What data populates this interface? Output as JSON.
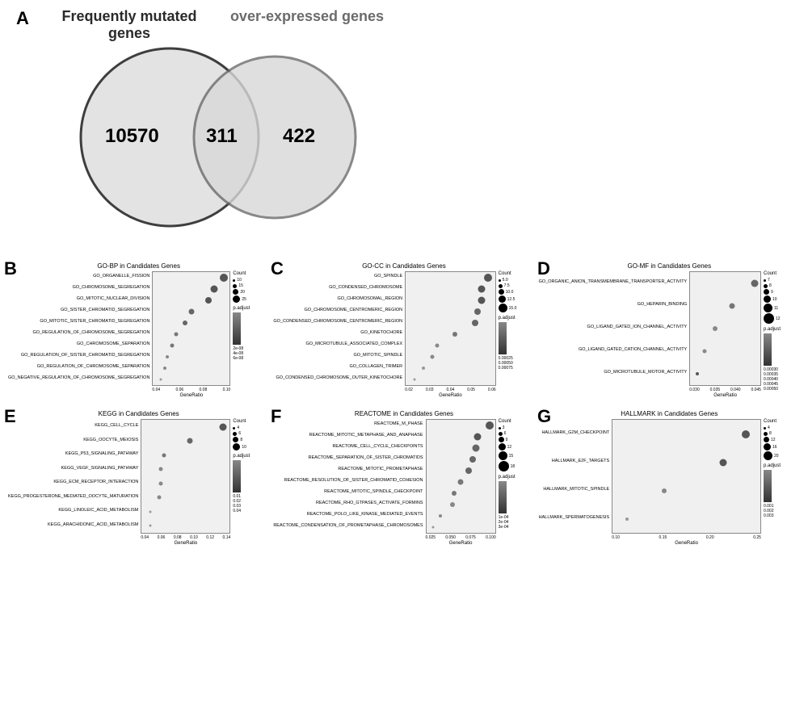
{
  "venn": {
    "title_left": "Frequently mutated genes",
    "title_right": "over-expressed genes",
    "left_value": "10570",
    "center_value": "311",
    "right_value": "422",
    "left_color": "#2a2a2a",
    "right_color": "#6b6b6b",
    "left_fill": "#e0e0e0",
    "right_fill": "#d8d8d8",
    "overlap_fill": "#b8b8b8"
  },
  "panels": {
    "A": "A",
    "B": "B",
    "C": "C",
    "D": "D",
    "E": "E",
    "F": "F",
    "G": "G"
  },
  "charts": {
    "B": {
      "title": "GO-BP in Candidates Genes",
      "xlabel": "GeneRatio",
      "xticks": [
        "0.04",
        "0.06",
        "0.08",
        "0.10"
      ],
      "terms": [
        {
          "label": "GO_ORGANELLE_FISSION",
          "x": 0.92,
          "size": 10,
          "color": "#555"
        },
        {
          "label": "GO_CHROMOSOME_SEGREGATION",
          "x": 0.8,
          "size": 9,
          "color": "#555"
        },
        {
          "label": "GO_MITOTIC_NUCLEAR_DIVISION",
          "x": 0.72,
          "size": 8,
          "color": "#555"
        },
        {
          "label": "GO_SISTER_CHROMATID_SEGREGATION",
          "x": 0.5,
          "size": 7,
          "color": "#666"
        },
        {
          "label": "GO_MITOTIC_SISTER_CHROMATID_SEGREGATION",
          "x": 0.42,
          "size": 6,
          "color": "#666"
        },
        {
          "label": "GO_REGULATION_OF_CHROMOSOME_SEGREGATION",
          "x": 0.3,
          "size": 5,
          "color": "#777"
        },
        {
          "label": "GO_CHROMOSOME_SEPARATION",
          "x": 0.25,
          "size": 5,
          "color": "#777"
        },
        {
          "label": "GO_REGULATION_OF_SISTER_CHROMATID_SEGREGATION",
          "x": 0.18,
          "size": 4,
          "color": "#888"
        },
        {
          "label": "GO_REGULATION_OF_CHROMOSOME_SEPARATION",
          "x": 0.15,
          "size": 4,
          "color": "#888"
        },
        {
          "label": "GO_NEGATIVE_REGULATION_OF_CHROMOSOME_SEGREGATION",
          "x": 0.1,
          "size": 3,
          "color": "#999"
        }
      ],
      "count_legend": [
        "10",
        "15",
        "20",
        "25"
      ],
      "padj_legend": [
        "2e-08",
        "4e-08",
        "6e-08"
      ]
    },
    "C": {
      "title": "GO-CC in Candidates Genes",
      "xlabel": "GeneRatio",
      "xticks": [
        "0.02",
        "0.03",
        "0.04",
        "0.05",
        "0.06"
      ],
      "terms": [
        {
          "label": "GO_SPINDLE",
          "x": 0.92,
          "size": 10,
          "color": "#555"
        },
        {
          "label": "GO_CONDENSED_CHROMOSOME",
          "x": 0.85,
          "size": 9,
          "color": "#555"
        },
        {
          "label": "GO_CHROMOSOMAL_REGION",
          "x": 0.85,
          "size": 9,
          "color": "#555"
        },
        {
          "label": "GO_CHROMOSOME_CENTROMERIC_REGION",
          "x": 0.8,
          "size": 8,
          "color": "#666"
        },
        {
          "label": "GO_CONDENSED_CHROMOSOME_CENTROMERIC_REGION",
          "x": 0.78,
          "size": 8,
          "color": "#666"
        },
        {
          "label": "GO_KINETOCHORE",
          "x": 0.55,
          "size": 6,
          "color": "#777"
        },
        {
          "label": "GO_MICROTUBULE_ASSOCIATED_COMPLEX",
          "x": 0.35,
          "size": 5,
          "color": "#888"
        },
        {
          "label": "GO_MITOTIC_SPINDLE",
          "x": 0.3,
          "size": 5,
          "color": "#888"
        },
        {
          "label": "GO_COLLAGEN_TRIMER",
          "x": 0.2,
          "size": 4,
          "color": "#999"
        },
        {
          "label": "GO_CONDENSED_CHROMOSOME_OUTER_KINETOCHORE",
          "x": 0.1,
          "size": 3,
          "color": "#999"
        }
      ],
      "count_legend": [
        "5.0",
        "7.5",
        "10.0",
        "12.5",
        "15.0"
      ],
      "padj_legend": [
        "0.00025",
        "0.00050",
        "0.00075"
      ]
    },
    "D": {
      "title": "GO-MF in Candidates Genes",
      "xlabel": "GeneRatio",
      "xticks": [
        "0.030",
        "0.035",
        "0.040",
        "0.045"
      ],
      "terms": [
        {
          "label": "GO_ORGANIC_ANION_TRANSMEMBRANE_TRANSPORTER_ACTIVITY",
          "x": 0.92,
          "size": 9,
          "color": "#666"
        },
        {
          "label": "GO_HEPARIN_BINDING",
          "x": 0.6,
          "size": 7,
          "color": "#777"
        },
        {
          "label": "GO_LIGAND_GATED_ION_CHANNEL_ACTIVITY",
          "x": 0.35,
          "size": 6,
          "color": "#888"
        },
        {
          "label": "GO_LIGAND_GATED_CATION_CHANNEL_ACTIVITY",
          "x": 0.2,
          "size": 5,
          "color": "#888"
        },
        {
          "label": "GO_MICROTUBULE_MOTOR_ACTIVITY",
          "x": 0.1,
          "size": 4,
          "color": "#555"
        }
      ],
      "count_legend": [
        "7",
        "8",
        "9",
        "10",
        "11",
        "12"
      ],
      "padj_legend": [
        "0.00030",
        "0.00035",
        "0.00040",
        "0.00045",
        "0.00050"
      ]
    },
    "E": {
      "title": "KEGG in Candidates Genes",
      "xlabel": "GeneRatio",
      "xticks": [
        "0.04",
        "0.06",
        "0.08",
        "0.10",
        "0.12",
        "0.14"
      ],
      "terms": [
        {
          "label": "KEGG_CELL_CYCLE",
          "x": 0.92,
          "size": 9,
          "color": "#555"
        },
        {
          "label": "KEGG_OOCYTE_MEIOSIS",
          "x": 0.55,
          "size": 7,
          "color": "#666"
        },
        {
          "label": "KEGG_P53_SIGNALING_PATHWAY",
          "x": 0.25,
          "size": 5,
          "color": "#777"
        },
        {
          "label": "KEGG_VEGF_SIGNALING_PATHWAY",
          "x": 0.22,
          "size": 5,
          "color": "#888"
        },
        {
          "label": "KEGG_ECM_RECEPTOR_INTERACTION",
          "x": 0.22,
          "size": 5,
          "color": "#888"
        },
        {
          "label": "KEGG_PROGESTERONE_MEDIATED_OOCYTE_MATURATION",
          "x": 0.2,
          "size": 5,
          "color": "#888"
        },
        {
          "label": "KEGG_LINOLEIC_ACID_METABOLISM",
          "x": 0.1,
          "size": 3,
          "color": "#999"
        },
        {
          "label": "KEGG_ARACHIDONIC_ACID_METABOLISM",
          "x": 0.1,
          "size": 3,
          "color": "#999"
        }
      ],
      "count_legend": [
        "4",
        "6",
        "8",
        "10"
      ],
      "padj_legend": [
        "0.01",
        "0.02",
        "0.03",
        "0.04"
      ]
    },
    "F": {
      "title": "REACTOME in Candidates Genes",
      "xlabel": "GeneRatio",
      "xticks": [
        "0.025",
        "0.050",
        "0.075",
        "0.100"
      ],
      "terms": [
        {
          "label": "REACTOME_M_PHASE",
          "x": 0.92,
          "size": 10,
          "color": "#555"
        },
        {
          "label": "REACTOME_MITOTIC_METAPHASE_AND_ANAPHASE",
          "x": 0.75,
          "size": 9,
          "color": "#555"
        },
        {
          "label": "REACTOME_CELL_CYCLE_CHECKPOINTS",
          "x": 0.72,
          "size": 9,
          "color": "#666"
        },
        {
          "label": "REACTOME_SEPARATION_OF_SISTER_CHROMATIDS",
          "x": 0.68,
          "size": 8,
          "color": "#666"
        },
        {
          "label": "REACTOME_MITOTIC_PROMETAPHASE",
          "x": 0.62,
          "size": 8,
          "color": "#666"
        },
        {
          "label": "REACTOME_RESOLUTION_OF_SISTER_CHROMATID_COHESION",
          "x": 0.5,
          "size": 7,
          "color": "#777"
        },
        {
          "label": "REACTOME_MITOTIC_SPINDLE_CHECKPOINT",
          "x": 0.4,
          "size": 6,
          "color": "#777"
        },
        {
          "label": "REACTOME_RHO_GTPASES_ACTIVATE_FORMINS",
          "x": 0.38,
          "size": 6,
          "color": "#888"
        },
        {
          "label": "REACTOME_POLO_LIKE_KINASE_MEDIATED_EVENTS",
          "x": 0.2,
          "size": 4,
          "color": "#888"
        },
        {
          "label": "REACTOME_CONDENSATION_OF_PROMETAPHASE_CHROMOSOMES",
          "x": 0.1,
          "size": 3,
          "color": "#999"
        }
      ],
      "count_legend": [
        "3",
        "6",
        "9",
        "12",
        "15",
        "18"
      ],
      "padj_legend": [
        "1e-04",
        "2e-04",
        "3e-04"
      ]
    },
    "G": {
      "title": "HALLMARK in Candidates Genes",
      "xlabel": "GeneRatio",
      "xticks": [
        "0.10",
        "0.15",
        "0.20",
        "0.25"
      ],
      "terms": [
        {
          "label": "HALLMARK_G2M_CHECKPOINT",
          "x": 0.9,
          "size": 10,
          "color": "#555"
        },
        {
          "label": "HALLMARK_E2F_TARGETS",
          "x": 0.75,
          "size": 9,
          "color": "#555"
        },
        {
          "label": "HALLMARK_MITOTIC_SPINDLE",
          "x": 0.35,
          "size": 6,
          "color": "#888"
        },
        {
          "label": "HALLMARK_SPERMATOGENESIS",
          "x": 0.1,
          "size": 4,
          "color": "#999"
        }
      ],
      "count_legend": [
        "4",
        "8",
        "12",
        "16",
        "20"
      ],
      "padj_legend": [
        "0.001",
        "0.002",
        "0.003"
      ]
    }
  }
}
